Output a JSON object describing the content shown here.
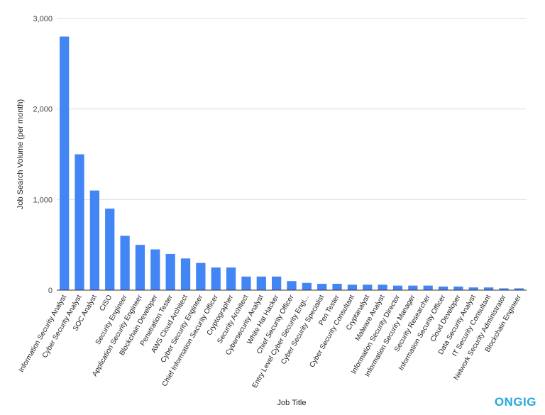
{
  "chart_data": {
    "type": "bar",
    "xlabel": "Job Title",
    "ylabel": "Job Search Volume (per month)",
    "ylim": [
      0,
      3000
    ],
    "yticks": [
      0,
      1000,
      2000,
      3000
    ],
    "ytick_labels": [
      "0",
      "1,000",
      "2,000",
      "3,000"
    ],
    "grid": true,
    "bar_color": "#4285f4",
    "categories": [
      "Information Security Analyst",
      "Cyber Security Analyst",
      "SOC Analyst",
      "CISO",
      "Security Engineer",
      "Application Security Engineer",
      "Blockchain Developer",
      "Penetration Tester",
      "AWS Cloud Architect",
      "Cyber Security Engineer",
      "Chief Information Security Officer",
      "Cryptographer",
      "Security Architect",
      "Cybersecurity Analyst",
      "White Hat Hacker",
      "Chief Security Officer",
      "Entry Level Cyber Security Engi...",
      "Cyber Security Specialist",
      "Pen Tester",
      "Cyber Security Consultant",
      "Cryptanalyst",
      "Malware Analyst",
      "Information Security Director",
      "Information Security Manager",
      "Security Researcher",
      "Information Security Officer",
      "Cloud Developer",
      "Data Security Analyst",
      "IT Security Consultant",
      "Network Security Administrator",
      "Blockchain Engineer"
    ],
    "values": [
      2800,
      1500,
      1100,
      900,
      600,
      500,
      450,
      400,
      350,
      300,
      250,
      250,
      150,
      150,
      150,
      100,
      80,
      70,
      70,
      60,
      60,
      60,
      50,
      50,
      50,
      40,
      40,
      30,
      30,
      20,
      20
    ]
  },
  "brand": {
    "logo_text": "ONGIG",
    "logo_color": "#2aa6d9"
  }
}
